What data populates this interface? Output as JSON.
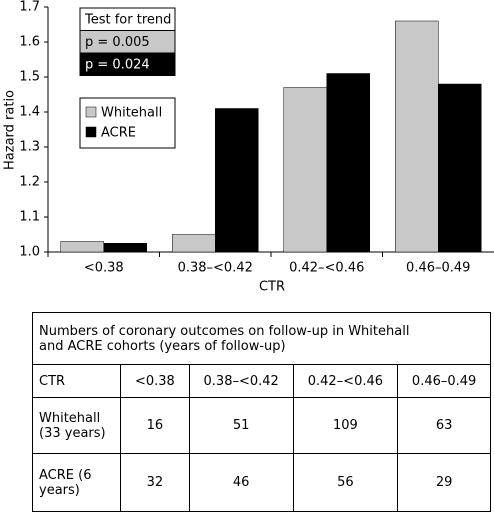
{
  "chart_data": {
    "type": "bar",
    "x_label": "CTR",
    "y_label": "Hazard ratio",
    "categories": [
      "<0.38",
      "0.38–<0.42",
      "0.42–<0.46",
      "0.46–0.49"
    ],
    "series": [
      {
        "name": "Whitehall",
        "color": "#c8c8c8",
        "values": [
          1.03,
          1.05,
          1.47,
          1.66
        ]
      },
      {
        "name": "ACRE",
        "color": "#000000",
        "values": [
          1.025,
          1.41,
          1.51,
          1.48
        ]
      }
    ],
    "ylim": [
      1.0,
      1.7
    ],
    "yticks": [
      {
        "value": 1.0,
        "label": "1.0"
      },
      1.1,
      1.2,
      1.3,
      1.4,
      1.5,
      1.6,
      1.7
    ],
    "annotations": [
      "Test for trend",
      "p = 0.005",
      "p = 0.024"
    ],
    "legend": "upper-left"
  },
  "table": {
    "title": "Numbers of coronary outcomes on follow-up in Whitehall and ACRE cohorts (years of follow-up)",
    "header": [
      "CTR",
      "<0.38",
      "0.38–<0.42",
      "0.42–<0.46",
      "0.46–0.49"
    ],
    "rows": [
      [
        "Whitehall (33 years)",
        16,
        51,
        109,
        63
      ],
      [
        "ACRE (6 years)",
        32,
        46,
        56,
        29
      ]
    ]
  }
}
